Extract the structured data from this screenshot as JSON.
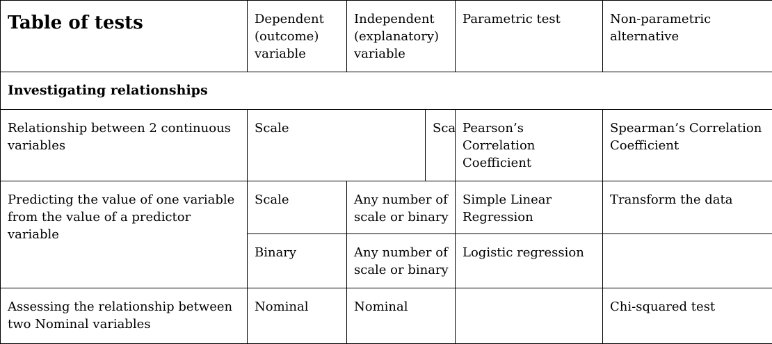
{
  "table": {
    "title": "Table of tests",
    "headers": {
      "dependent": "Dependent\n(outcome)\nvariable",
      "independent": "Independent\n(explanatory)\nvariable",
      "parametric": "Parametric test",
      "nonparametric": "Non-parametric\nalternative"
    },
    "section": "Investigating relationships",
    "rows": [
      {
        "purpose": "Relationship between 2\ncontinuous variables",
        "dependent": "Scale",
        "independent": "Scale",
        "parametric": "Pearson’s\nCorrelation\nCoefficient",
        "nonparametric": "Spearman’s\nCorrelation Coefficient"
      },
      {
        "purpose": "Predicting the value of one\nvariable from the value of a\npredictor variable",
        "dependent": "Scale",
        "independent": "Any number of\nscale or binary",
        "parametric": "Simple Linear\nRegression",
        "nonparametric": "Transform the data"
      },
      {
        "dependent": "Binary",
        "independent": "Any number of\nscale or binary",
        "parametric": "Logistic regression",
        "nonparametric": ""
      },
      {
        "purpose": "Assessing the relationship\nbetween two Nominal variables",
        "dependent": "Nominal",
        "independent": "Nominal",
        "parametric": "",
        "nonparametric": "Chi-squared test"
      }
    ]
  }
}
